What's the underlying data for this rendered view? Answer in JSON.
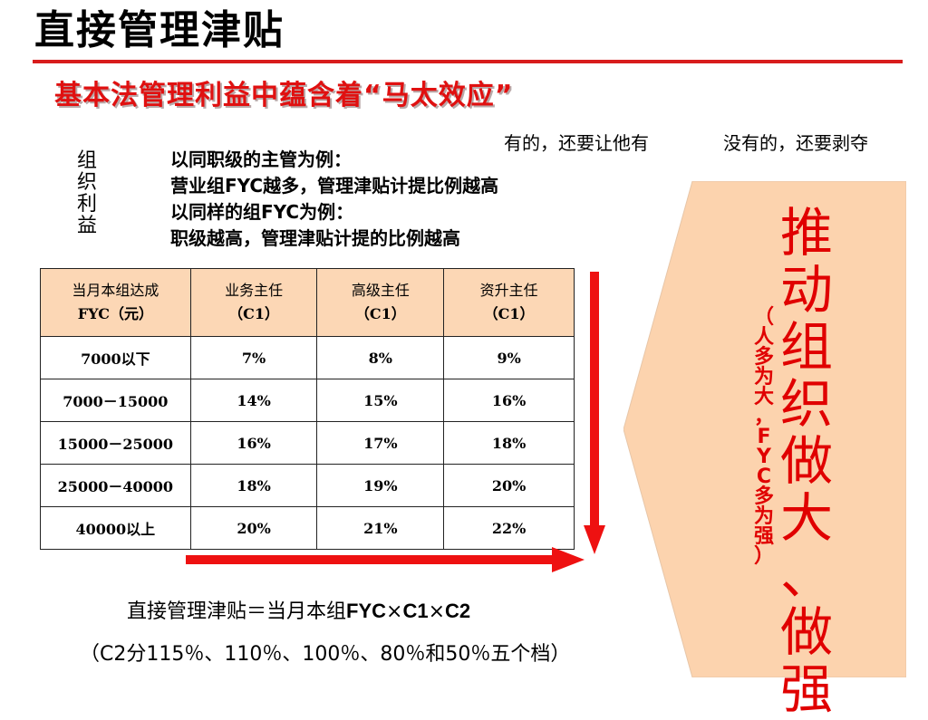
{
  "title": "直接管理津贴",
  "subtitle": "基本法管理利益中蕴含着“马太效应”",
  "quote_left": "有的，还要让他有",
  "quote_right": "没有的，还要剥夺",
  "vertical_label": [
    "组",
    "织",
    "利",
    "益"
  ],
  "intro_lines": [
    "以同职级的主管为例：",
    "营业组FYC越多，管理津贴计提比例越高",
    "以同样的组FYC为例：",
    "职级越高，管理津贴计提的比例越高"
  ],
  "table": {
    "headers": [
      {
        "line1": "当月本组达成",
        "line2": "FYC（元）"
      },
      {
        "line1": "业务主任",
        "line2": "（C1）"
      },
      {
        "line1": "高级主任",
        "line2": "（C1）"
      },
      {
        "line1": "资升主任",
        "line2": "（C1）"
      }
    ],
    "rows": [
      [
        "7000以下",
        "7%",
        "8%",
        "9%"
      ],
      [
        "7000－15000",
        "14%",
        "15%",
        "16%"
      ],
      [
        "15000－25000",
        "16%",
        "17%",
        "18%"
      ],
      [
        "25000－40000",
        "18%",
        "19%",
        "20%"
      ],
      [
        "40000以上",
        "20%",
        "21%",
        "22%"
      ]
    ]
  },
  "panel": {
    "big_text": [
      "推",
      "动",
      "组",
      "织",
      "做",
      "大",
      "、",
      "做",
      "强"
    ],
    "small_text": [
      "（",
      "人",
      "多",
      "为",
      "大",
      "，",
      "F",
      "Y",
      "C",
      "多",
      "为",
      "强",
      "）"
    ]
  },
  "formula": {
    "prefix": "直接管理津贴＝当月本组",
    "term1": "FYC",
    "times1": "×",
    "term2": "C1",
    "times2": "×",
    "term3": "C2"
  },
  "grades": "（C2分115％、110％、100％、80％和50％五个档）",
  "colors": {
    "accent_red": "#e00000",
    "header_fill": "#fcd7b5",
    "panel_fill": "#fcd3ae"
  }
}
